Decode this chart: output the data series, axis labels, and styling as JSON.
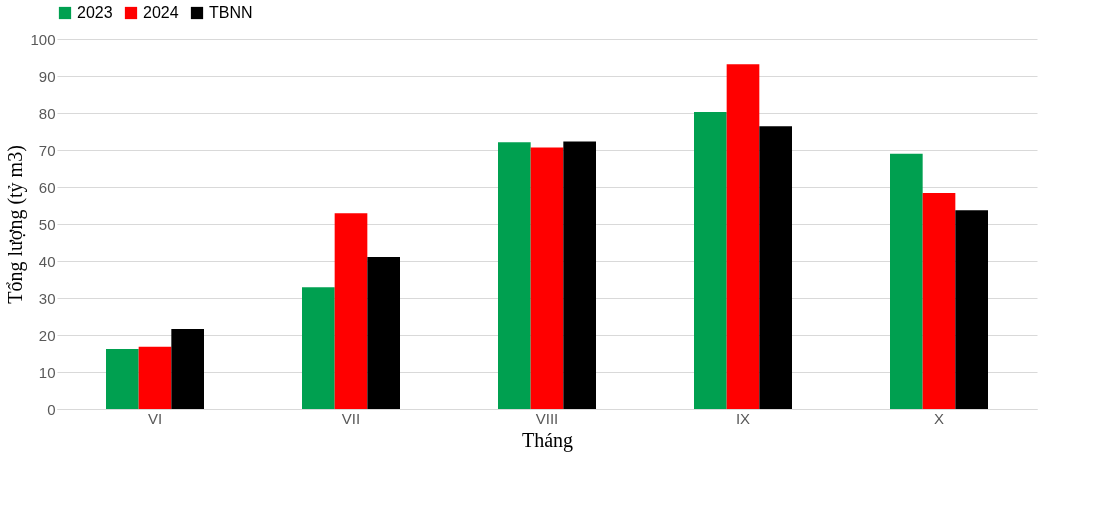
{
  "chart_data": {
    "type": "bar",
    "xlabel": "Tháng",
    "ylabel": "Tổng lượng (tỷ m3)",
    "categories": [
      "VI",
      "VII",
      "VIII",
      "IX",
      "X"
    ],
    "series": [
      {
        "name": "2023",
        "color": "#00a050",
        "values": [
          16.2,
          32.9,
          72.1,
          80.3,
          69.0
        ]
      },
      {
        "name": "2024",
        "color": "#ff0000",
        "values": [
          16.8,
          52.9,
          70.7,
          93.2,
          58.4
        ]
      },
      {
        "name": "TBNN",
        "color": "#000000",
        "values": [
          21.6,
          41.1,
          72.3,
          76.4,
          53.7
        ]
      }
    ],
    "ylim": [
      0,
      100
    ],
    "yticks": [
      0,
      10,
      20,
      30,
      40,
      50,
      60,
      70,
      80,
      90,
      100
    ],
    "grid": "y",
    "legend": "top left"
  }
}
